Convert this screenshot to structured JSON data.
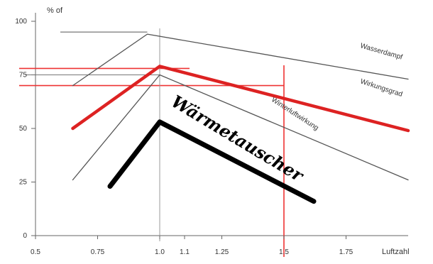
{
  "chart_data": {
    "type": "line",
    "title": "",
    "ylabel": "% of",
    "xlabel": "Luftzahl",
    "xlim": [
      0.5,
      2.0
    ],
    "ylim": [
      0,
      100
    ],
    "x_ticks": [
      {
        "value": 0.5,
        "label": "0.5"
      },
      {
        "value": 0.75,
        "label": "0.75"
      },
      {
        "value": 1.0,
        "label": "1.0"
      },
      {
        "value": 1.1,
        "label": "1.1"
      },
      {
        "value": 1.25,
        "label": "1.25"
      },
      {
        "value": 1.5,
        "label": "1.5"
      },
      {
        "value": 1.75,
        "label": "1.75"
      }
    ],
    "y_ticks": [
      {
        "value": 0,
        "label": "0"
      },
      {
        "value": 25,
        "label": "25"
      },
      {
        "value": 50,
        "label": "50"
      },
      {
        "value": 75,
        "label": "75"
      },
      {
        "value": 100,
        "label": "100"
      }
    ],
    "series": [
      {
        "name": "Wasserdampf",
        "color": "#555555",
        "width": 1.3,
        "points": [
          [
            0.65,
            70
          ],
          [
            0.95,
            94
          ],
          [
            2.0,
            73
          ]
        ]
      },
      {
        "name": "Winterluftwirkung",
        "color": "#555555",
        "width": 1.3,
        "points": [
          [
            0.65,
            26
          ],
          [
            1.0,
            75
          ],
          [
            2.0,
            26
          ]
        ]
      },
      {
        "name": "Wirkungsgrad",
        "color": "#dd2222",
        "width": 4.5,
        "points": [
          [
            0.65,
            50
          ],
          [
            1.0,
            79
          ],
          [
            2.0,
            49
          ]
        ]
      },
      {
        "name": "Wärmetauscher",
        "color": "#000000",
        "width": 7,
        "points": [
          [
            0.8,
            23
          ],
          [
            1.0,
            53
          ],
          [
            1.62,
            16
          ]
        ]
      }
    ],
    "reference_lines": [
      {
        "orientation": "horizontal",
        "value": 78,
        "color": "#ee3333"
      },
      {
        "orientation": "horizontal",
        "value": 70,
        "color": "#ee3333"
      },
      {
        "orientation": "horizontal",
        "value": 95,
        "color": "#555555"
      },
      {
        "orientation": "horizontal",
        "value": 75,
        "color": "#777777"
      },
      {
        "orientation": "vertical",
        "value": 1.5,
        "color": "#ee3333"
      },
      {
        "orientation": "vertical",
        "value": 1.0,
        "color": "#999999"
      }
    ],
    "annotations": [
      {
        "text": "Wasserdampf",
        "style": "small",
        "rotate": 16,
        "anchor": [
          1.89,
          85
        ]
      },
      {
        "text": "Wirkungsgrad",
        "style": "small",
        "rotate": 18,
        "anchor": [
          1.89,
          68
        ]
      },
      {
        "text": "Winterluftwirkung",
        "style": "small",
        "rotate": 33,
        "anchor": [
          1.54,
          56
        ]
      },
      {
        "text": "Wärmetauscher",
        "style": "handwritten",
        "rotate": 31,
        "anchor": [
          1.3,
          43
        ]
      }
    ],
    "grid": false,
    "legend": "none"
  }
}
